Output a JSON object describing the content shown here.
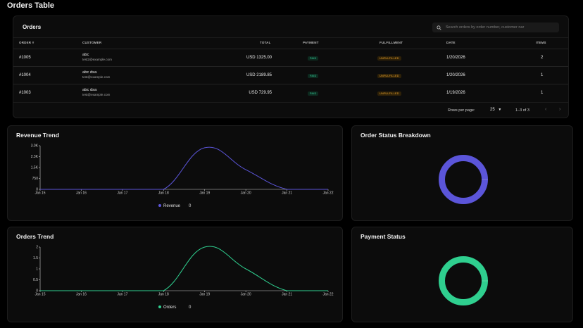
{
  "page_title": "Orders Table",
  "orders": {
    "title": "Orders",
    "search_placeholder": "Search orders by order number, customer nar",
    "columns": [
      "ORDER #",
      "CUSTOMER",
      "TOTAL",
      "PAYMENT",
      "FULFILLMENT",
      "DATE",
      "ITEMS"
    ],
    "rows": [
      {
        "order": "#1005",
        "name": "abc",
        "email": "test2@example.com",
        "total": "USD 1325.00",
        "payment": "PAID",
        "fulfillment": "UNFULFILLED",
        "date": "1/20/2026",
        "items": "2"
      },
      {
        "order": "#1004",
        "name": "abc dsa",
        "email": "test@example.com",
        "total": "USD 2189.85",
        "payment": "PAID",
        "fulfillment": "UNFULFILLED",
        "date": "1/20/2026",
        "items": "1"
      },
      {
        "order": "#1003",
        "name": "abc dsa",
        "email": "test@example.com",
        "total": "USD 729.95",
        "payment": "PAID",
        "fulfillment": "UNFULFILLED",
        "date": "1/19/2026",
        "items": "1"
      }
    ],
    "pager": {
      "rows_label": "Rows per page:",
      "rows_value": "25",
      "range": "1–3 of 3",
      "prev": "‹",
      "next": "›"
    }
  },
  "colors": {
    "revenue": "#5b55d9",
    "orders": "#2fcf8f",
    "paid": "#38d39f",
    "unfulfilled": "#f3a82f",
    "status_ring": "#5b55d9",
    "payment_ring": "#2fcf8f"
  },
  "chart_data": [
    {
      "type": "line",
      "title": "Revenue Trend",
      "x": [
        "Jan 15",
        "Jan 16",
        "Jan 17",
        "Jan 18",
        "Jan 19",
        "Jan 20",
        "Jan 21",
        "Jan 22"
      ],
      "series": [
        {
          "name": "Revenue",
          "values": [
            0,
            0,
            0,
            0,
            2860,
            1350,
            0,
            0
          ]
        }
      ],
      "legend": {
        "name": "Revenue",
        "value": "0"
      },
      "yticks": [
        "0",
        "750",
        "1.5K",
        "2.3K",
        "3.0K"
      ],
      "ylim": [
        0,
        3000
      ]
    },
    {
      "type": "line",
      "title": "Orders Trend",
      "x": [
        "Jan 15",
        "Jan 16",
        "Jan 17",
        "Jan 18",
        "Jan 19",
        "Jan 20",
        "Jan 21",
        "Jan 22"
      ],
      "series": [
        {
          "name": "Orders",
          "values": [
            0,
            0,
            0,
            0,
            2,
            1,
            0,
            0
          ]
        }
      ],
      "legend": {
        "name": "Orders",
        "value": "0"
      },
      "yticks": [
        "0",
        "0.5",
        "1",
        "1.5",
        "2"
      ],
      "ylim": [
        0,
        2
      ]
    },
    {
      "type": "pie",
      "title": "Order Status Breakdown",
      "values": [
        1
      ]
    },
    {
      "type": "pie",
      "title": "Payment Status",
      "values": [
        1
      ]
    }
  ]
}
